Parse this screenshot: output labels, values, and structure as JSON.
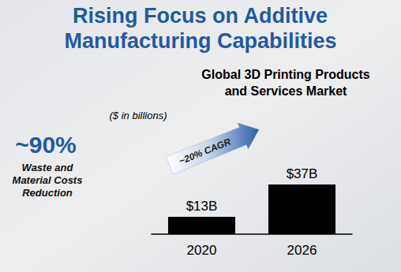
{
  "chart_data": {
    "type": "bar",
    "title": "Rising Focus on Additive Manufacturing Capabilities",
    "subtitle": "Global 3D Printing Products and Services Market",
    "annotations": [
      "($ in billions)",
      "~20% CAGR",
      "~90%",
      "Waste and Material Costs Reduction"
    ],
    "categories": [
      "2020",
      "2026"
    ],
    "values": [
      13,
      37
    ],
    "value_labels": [
      "$13B",
      "$37B"
    ],
    "data_labels": true,
    "color": "#000000",
    "ylim": [
      0,
      40
    ],
    "grid": false,
    "tick_labels": "x"
  }
}
